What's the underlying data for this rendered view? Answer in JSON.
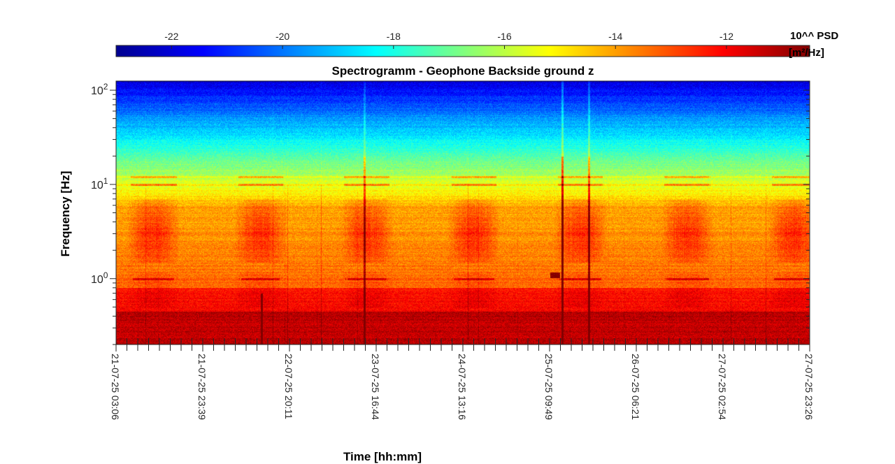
{
  "chart_data": {
    "type": "heatmap",
    "title": "Spectrogramm - Geophone Backside ground z",
    "xlabel": "Time [hh:mm]",
    "ylabel": "Frequency [Hz]",
    "colorbar": {
      "label_line1": "10^^ PSD",
      "label_line2": "[m²/Hz]",
      "range": [
        -23,
        -10.5
      ],
      "ticks": [
        -22,
        -20,
        -18,
        -16,
        -14,
        -12
      ],
      "colormap": "jet"
    },
    "x_ticks": [
      "21-07-25 03:06",
      "21-07-25 23:39",
      "22-07-25 20:11",
      "23-07-25 16:44",
      "24-07-25 13:16",
      "25-07-25 09:49",
      "26-07-25 06:21",
      "27-07-25 02:54",
      "27-07-25 23:26"
    ],
    "y_scale": "log",
    "y_range": [
      0.2,
      125
    ],
    "y_ticks": [
      {
        "label": "10",
        "exp": "0",
        "value": 1
      },
      {
        "label": "10",
        "exp": "1",
        "value": 10
      },
      {
        "label": "10",
        "exp": "2",
        "value": 100
      }
    ],
    "description_of_field": "log10 PSD; low frequencies ~ -11 (orange/red), high frequencies ~ -21 (blue); broad energy band near 3 Hz with daily modulation; tonal lines near 1 Hz and 12 Hz"
  }
}
